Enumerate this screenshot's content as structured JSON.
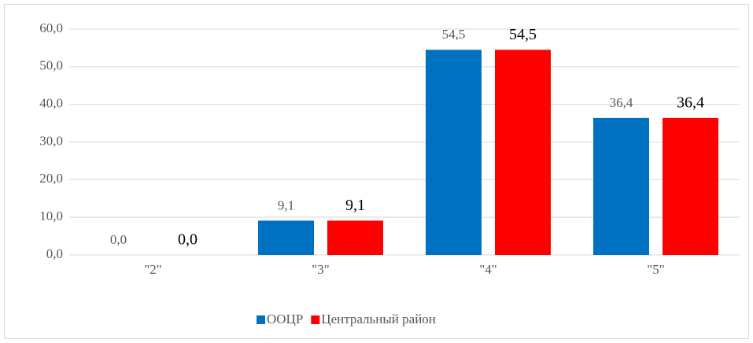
{
  "chart_data": {
    "type": "bar",
    "categories": [
      "\"2\"",
      "\"3\"",
      "\"4\"",
      "\"5\""
    ],
    "series": [
      {
        "name": "ООЦР",
        "color": "#0070c0",
        "values": [
          0,
          9.1,
          54.5,
          36.4
        ],
        "value_labels": [
          "0,0",
          "9,1",
          "54,5",
          "36,4"
        ]
      },
      {
        "name": "Центральный район",
        "color": "#ff0000",
        "values": [
          0,
          9.1,
          54.5,
          36.4
        ],
        "value_labels": [
          "0,0",
          "9,1",
          "54,5",
          "36,4"
        ]
      }
    ],
    "ylim": [
      0,
      60
    ],
    "yticks": [
      {
        "value": 0,
        "label": "0,0"
      },
      {
        "value": 10,
        "label": "10,0"
      },
      {
        "value": 20,
        "label": "20,0"
      },
      {
        "value": 30,
        "label": "30,0"
      },
      {
        "value": 40,
        "label": "40,0"
      },
      {
        "value": 50,
        "label": "50,0"
      },
      {
        "value": 60,
        "label": "60,0"
      }
    ],
    "grid": true,
    "legend": "bottom"
  }
}
